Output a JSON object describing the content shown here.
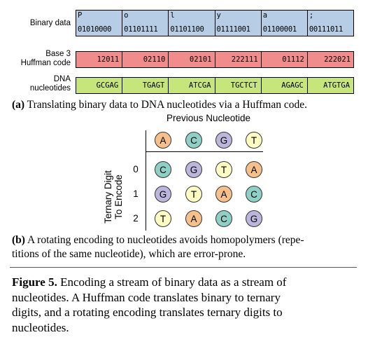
{
  "panel_a": {
    "rows": [
      {
        "label": "Binary data",
        "cells": [
          {
            "char": "P",
            "bits": "01010000"
          },
          {
            "char": "o",
            "bits": "01101111"
          },
          {
            "char": "l",
            "bits": "01101100"
          },
          {
            "char": "y",
            "bits": "01111001"
          },
          {
            "char": "a",
            "bits": "01100001"
          },
          {
            "char": ";",
            "bits": "00111011"
          }
        ]
      },
      {
        "label_line1": "Base 3",
        "label_line2": "Huffman code",
        "cells": [
          "12011",
          "02110",
          "02101",
          "222111",
          "01112",
          "222021"
        ]
      },
      {
        "label_line1": "DNA",
        "label_line2": "nucleotides",
        "cells": [
          "GCGAG",
          "TGAGT",
          "ATCGA",
          "TGCTCT",
          "AGAGC",
          "ATGTGA"
        ]
      }
    ],
    "colors": {
      "binary": "#b7cde6",
      "huffman": "#f08c8c",
      "dna": "#c6e57a"
    },
    "caption_tag": "(a)",
    "caption_text": " Translating binary data to DNA nucleotides via a Huffman code."
  },
  "panel_b": {
    "column_header": "Previous Nucleotide",
    "row_header_line1": "Ternary Digit",
    "row_header_line2": "To Encode",
    "columns": [
      "A",
      "C",
      "G",
      "T"
    ],
    "row_digits": [
      "0",
      "1",
      "2"
    ],
    "cells": [
      [
        "C",
        "G",
        "T",
        "A"
      ],
      [
        "G",
        "T",
        "A",
        "C"
      ],
      [
        "T",
        "A",
        "C",
        "G"
      ]
    ],
    "nucleotide_colors": {
      "A": "#f7c08a",
      "C": "#8fd0c6",
      "G": "#bcb6dc",
      "T": "#fcfcc3"
    },
    "caption_tag": "(b)",
    "caption_line1": " A rotating encoding to nucleotides avoids homopolymers (repe-",
    "caption_line2": "titions of the same nucleotide), which are error-prone."
  },
  "figure_caption": {
    "tag": "Figure 5.",
    "line1": " Encoding a stream of binary data as a stream of",
    "line2": "nucleotides. A Huffman code translates binary to ternary",
    "line3": "digits, and a rotating encoding translates ternary digits to",
    "line4": "nucleotides."
  }
}
